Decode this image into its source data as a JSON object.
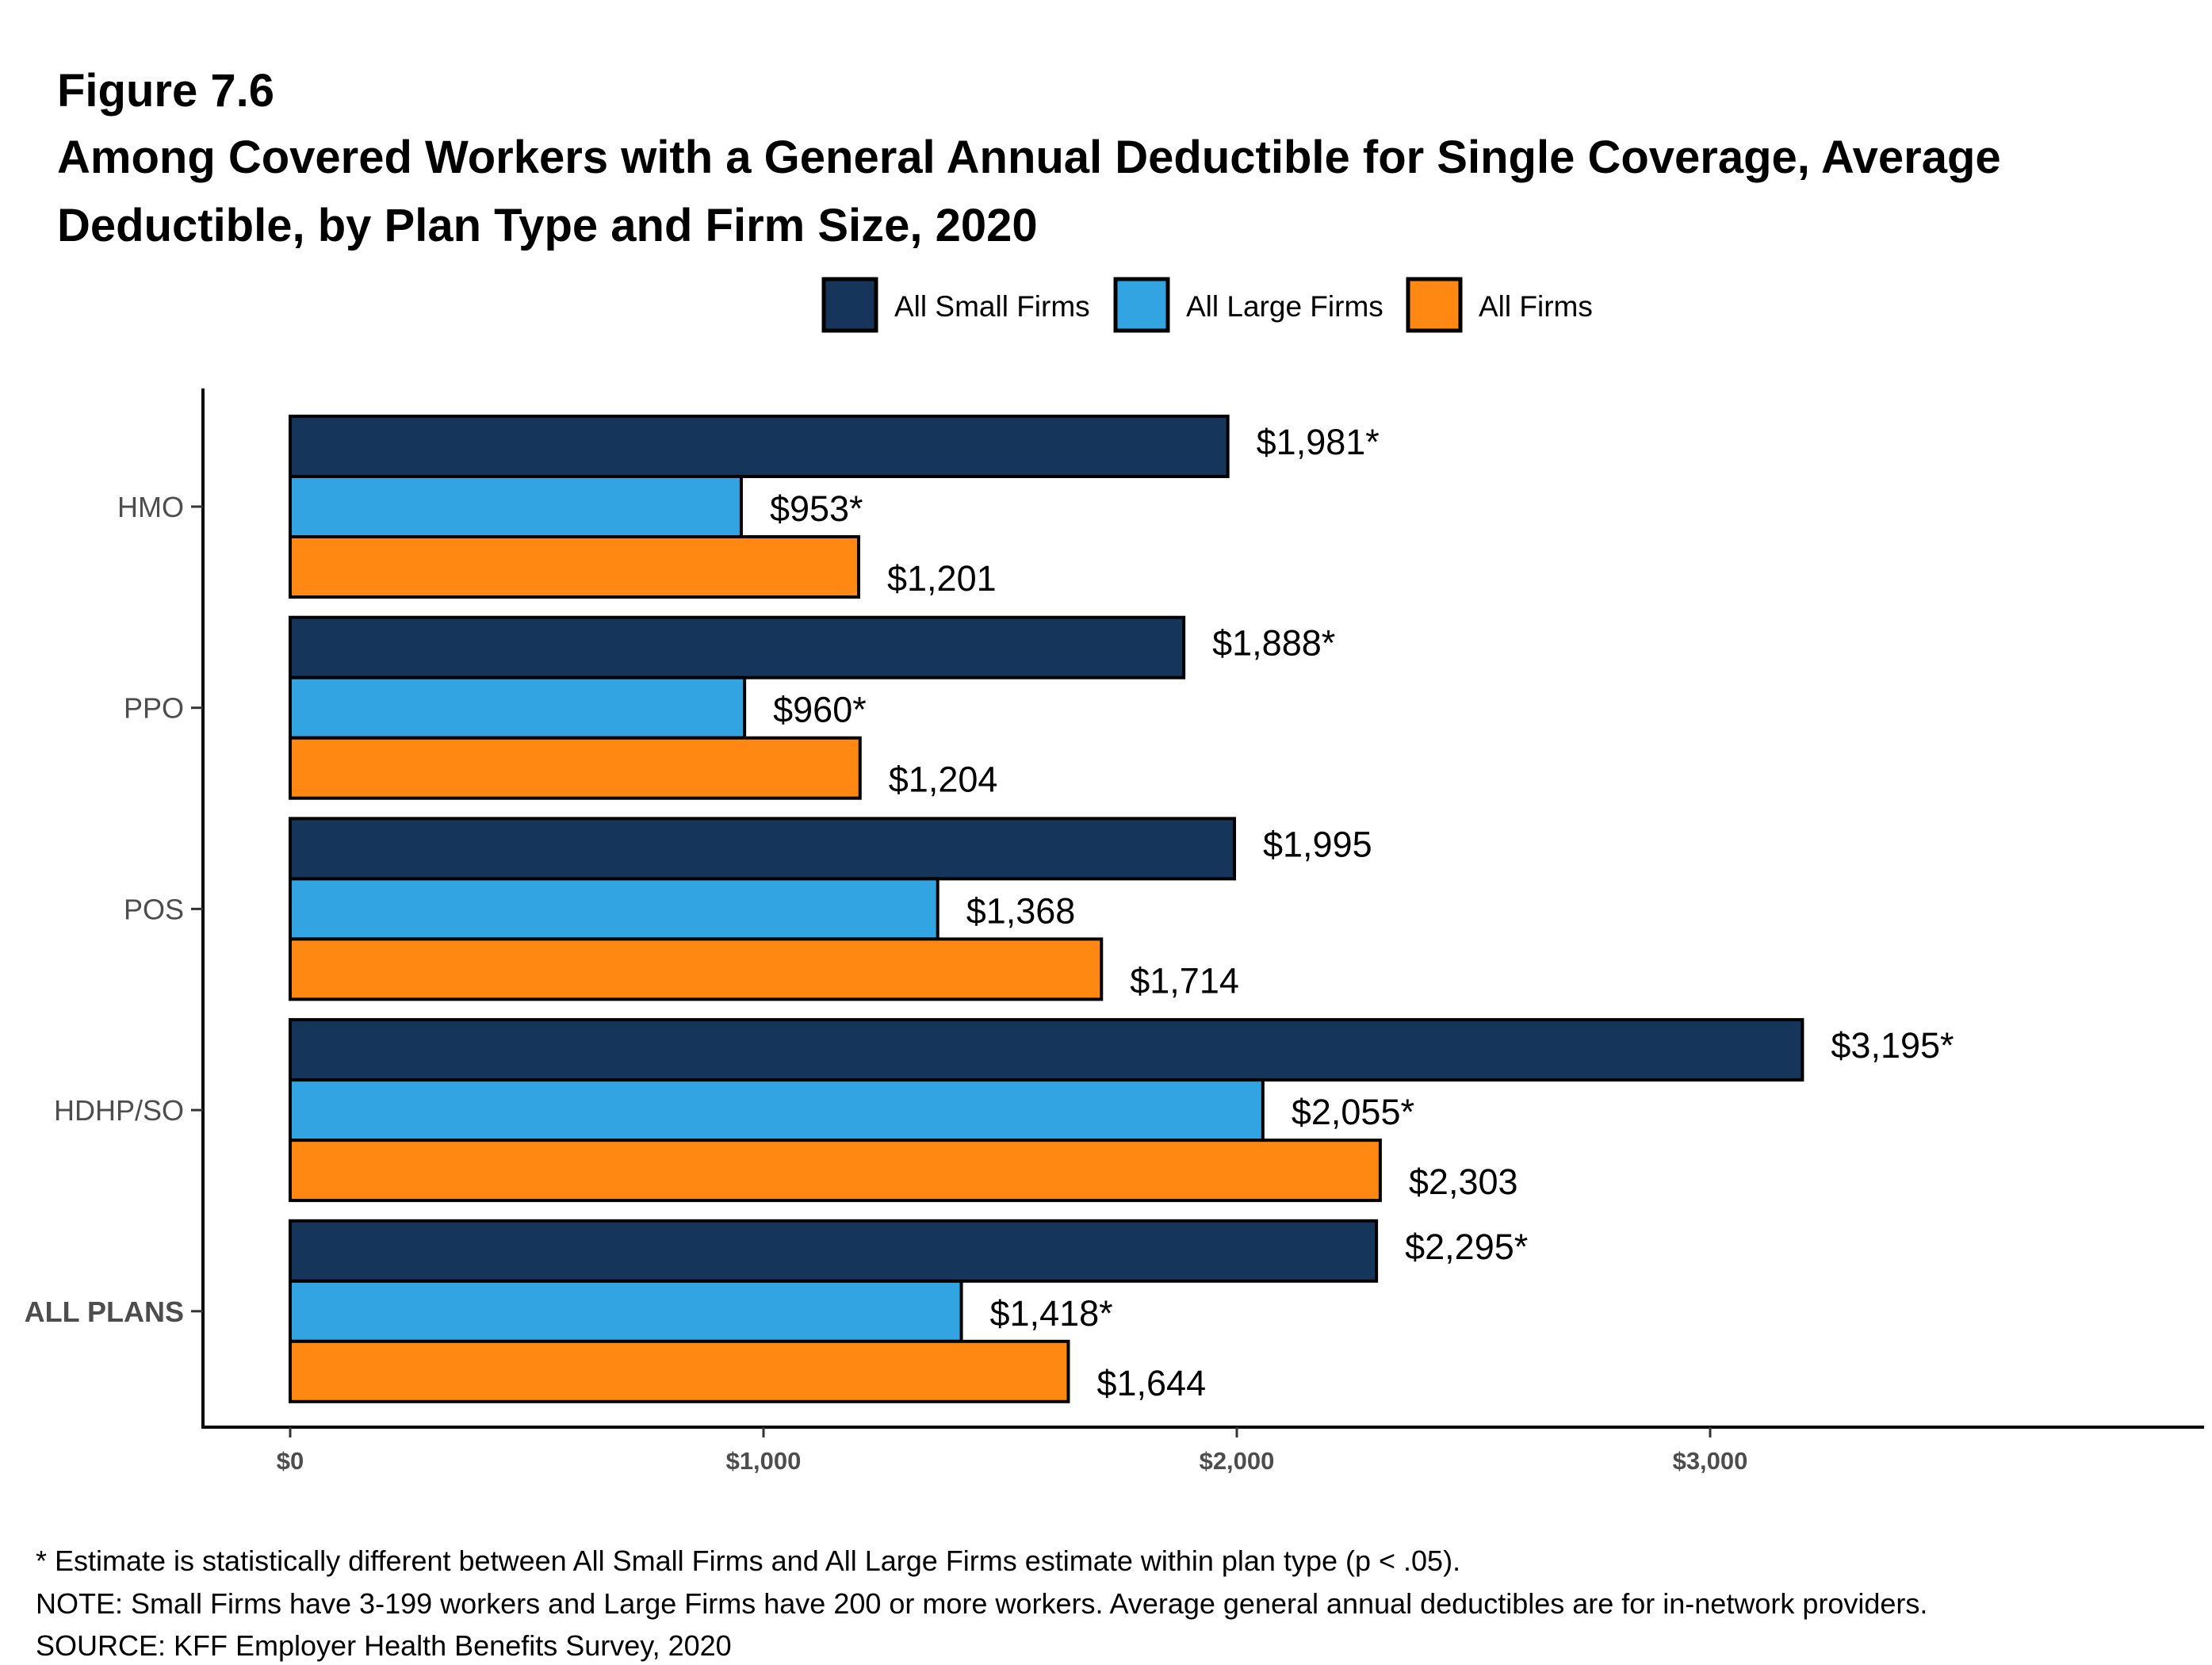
{
  "figure_label": "Figure 7.6",
  "title_line1": "Among Covered Workers with a General Annual Deductible for Single Coverage, Average",
  "title_line2": "Deductible, by Plan Type and Firm Size, 2020",
  "footnotes": [
    "* Estimate is statistically different between All Small Firms and All Large Firms estimate within plan type (p < .05).",
    "NOTE: Small Firms have 3-199 workers and Large Firms have 200 or more workers. Average general annual deductibles are for in-network providers.",
    "SOURCE: KFF Employer Health Benefits Survey, 2020"
  ],
  "chart_data": {
    "type": "bar",
    "orientation": "horizontal",
    "categories": [
      "HMO",
      "PPO",
      "POS",
      "HDHP/SO",
      "ALL PLANS"
    ],
    "series": [
      {
        "name": "All Small Firms",
        "color": "#15355a",
        "values": [
          1981,
          1888,
          1995,
          3195,
          2295
        ],
        "labels": [
          "$1,981*",
          "$1,888*",
          "$1,995",
          "$3,195*",
          "$2,295*"
        ]
      },
      {
        "name": "All Large Firms",
        "color": "#32a4e2",
        "values": [
          953,
          960,
          1368,
          2055,
          1418
        ],
        "labels": [
          "$953*",
          "$960*",
          "$1,368",
          "$2,055*",
          "$1,418*"
        ]
      },
      {
        "name": "All Firms",
        "color": "#fe8812",
        "values": [
          1201,
          1204,
          1714,
          2303,
          1644
        ],
        "labels": [
          "$1,201",
          "$1,204",
          "$1,714",
          "$2,303",
          "$1,644"
        ]
      }
    ],
    "xticks": [
      0,
      1000,
      2000,
      3000
    ],
    "xtick_labels": [
      "$0",
      "$1,000",
      "$2,000",
      "$3,000"
    ],
    "xlim": [
      -190,
      4000
    ],
    "legend_position": "top",
    "grid": false
  }
}
